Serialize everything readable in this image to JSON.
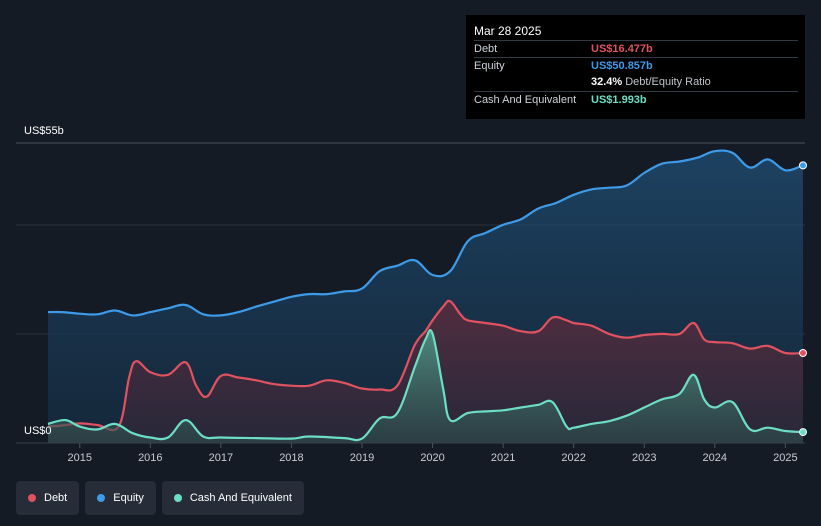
{
  "tooltip": {
    "date": "Mar 28 2025",
    "debt_label": "Debt",
    "debt_value": "US$16.477b",
    "equity_label": "Equity",
    "equity_value": "US$50.857b",
    "ratio_value": "32.4%",
    "ratio_label": "Debt/Equity Ratio",
    "cash_label": "Cash And Equivalent",
    "cash_value": "US$1.993b"
  },
  "colors": {
    "background": "#151b24",
    "debt": "#e0525f",
    "equity": "#3d9be9",
    "cash": "#6ddec6"
  },
  "chart_data": {
    "type": "area",
    "title": "",
    "xlabel": "",
    "ylabel": "",
    "y_top_label": "US$55b",
    "y_bottom_label": "US$0",
    "ylim": [
      0,
      55
    ],
    "xlim": [
      2014.55,
      2025.25
    ],
    "x_ticks": [
      "2015",
      "2016",
      "2017",
      "2018",
      "2019",
      "2020",
      "2021",
      "2022",
      "2023",
      "2024",
      "2025"
    ],
    "series": [
      {
        "name": "Debt",
        "x": [
          2014.55,
          2014.75,
          2015.0,
          2015.25,
          2015.55,
          2015.7,
          2015.8,
          2016.0,
          2016.25,
          2016.5,
          2016.65,
          2016.8,
          2017.0,
          2017.25,
          2017.5,
          2017.75,
          2018.0,
          2018.25,
          2018.5,
          2018.75,
          2019.0,
          2019.25,
          2019.5,
          2019.75,
          2019.9,
          2020.0,
          2020.15,
          2020.25,
          2020.4,
          2020.5,
          2020.75,
          2021.0,
          2021.25,
          2021.5,
          2021.7,
          2021.9,
          2022.0,
          2022.25,
          2022.5,
          2022.75,
          2023.0,
          2023.25,
          2023.5,
          2023.7,
          2023.85,
          2024.0,
          2024.25,
          2024.5,
          2024.75,
          2025.0,
          2025.25
        ],
        "values": [
          3.0,
          3.2,
          3.6,
          3.3,
          3.0,
          12.0,
          15.0,
          13.0,
          12.5,
          14.8,
          10.5,
          8.5,
          12.3,
          12.0,
          11.5,
          10.8,
          10.5,
          10.5,
          11.5,
          11.0,
          10.0,
          9.8,
          10.5,
          18.0,
          20.5,
          22.5,
          25.0,
          26.0,
          23.5,
          22.5,
          22.0,
          21.5,
          20.5,
          20.5,
          23.0,
          22.5,
          22.0,
          21.5,
          20.0,
          19.3,
          19.8,
          20.0,
          20.0,
          22.0,
          19.0,
          18.5,
          18.3,
          17.3,
          17.8,
          16.5,
          16.5
        ]
      },
      {
        "name": "Equity",
        "x": [
          2014.55,
          2014.75,
          2015.0,
          2015.25,
          2015.5,
          2015.75,
          2016.0,
          2016.25,
          2016.5,
          2016.75,
          2017.0,
          2017.25,
          2017.5,
          2017.75,
          2018.0,
          2018.25,
          2018.5,
          2018.75,
          2019.0,
          2019.25,
          2019.5,
          2019.75,
          2020.0,
          2020.25,
          2020.5,
          2020.75,
          2021.0,
          2021.25,
          2021.5,
          2021.75,
          2022.0,
          2022.25,
          2022.5,
          2022.75,
          2023.0,
          2023.25,
          2023.5,
          2023.75,
          2024.0,
          2024.25,
          2024.5,
          2024.75,
          2025.0,
          2025.25
        ],
        "values": [
          24.0,
          24.0,
          23.7,
          23.6,
          24.3,
          23.4,
          24.0,
          24.7,
          25.3,
          23.6,
          23.4,
          24.0,
          25.0,
          25.9,
          26.8,
          27.3,
          27.3,
          27.8,
          28.3,
          31.5,
          32.5,
          33.5,
          30.8,
          31.5,
          37.0,
          38.5,
          40.0,
          41.0,
          43.0,
          44.0,
          45.5,
          46.5,
          46.8,
          47.2,
          49.5,
          51.2,
          51.6,
          52.3,
          53.5,
          53.2,
          50.5,
          52.0,
          50.0,
          50.9
        ]
      },
      {
        "name": "Cash And Equivalent",
        "x": [
          2014.55,
          2014.8,
          2015.0,
          2015.25,
          2015.5,
          2015.75,
          2016.0,
          2016.25,
          2016.5,
          2016.75,
          2017.0,
          2017.5,
          2018.0,
          2018.25,
          2018.75,
          2019.0,
          2019.25,
          2019.5,
          2019.75,
          2019.9,
          2020.0,
          2020.15,
          2020.25,
          2020.5,
          2020.75,
          2021.0,
          2021.25,
          2021.5,
          2021.7,
          2021.9,
          2022.0,
          2022.25,
          2022.5,
          2022.75,
          2023.0,
          2023.25,
          2023.5,
          2023.7,
          2023.85,
          2024.0,
          2024.25,
          2024.5,
          2024.75,
          2025.0,
          2025.25
        ],
        "values": [
          3.5,
          4.2,
          3.0,
          2.5,
          3.5,
          1.8,
          1.0,
          1.0,
          4.2,
          1.2,
          1.0,
          0.9,
          0.8,
          1.2,
          0.9,
          0.8,
          4.5,
          5.5,
          14.0,
          19.0,
          20.0,
          10.0,
          4.2,
          5.5,
          5.8,
          6.0,
          6.5,
          7.0,
          7.5,
          3.0,
          2.8,
          3.5,
          4.0,
          5.0,
          6.5,
          8.0,
          9.0,
          12.5,
          8.0,
          6.5,
          7.5,
          2.5,
          2.8,
          2.2,
          2.0
        ]
      }
    ],
    "legend": [
      "Debt",
      "Equity",
      "Cash And Equivalent"
    ]
  }
}
